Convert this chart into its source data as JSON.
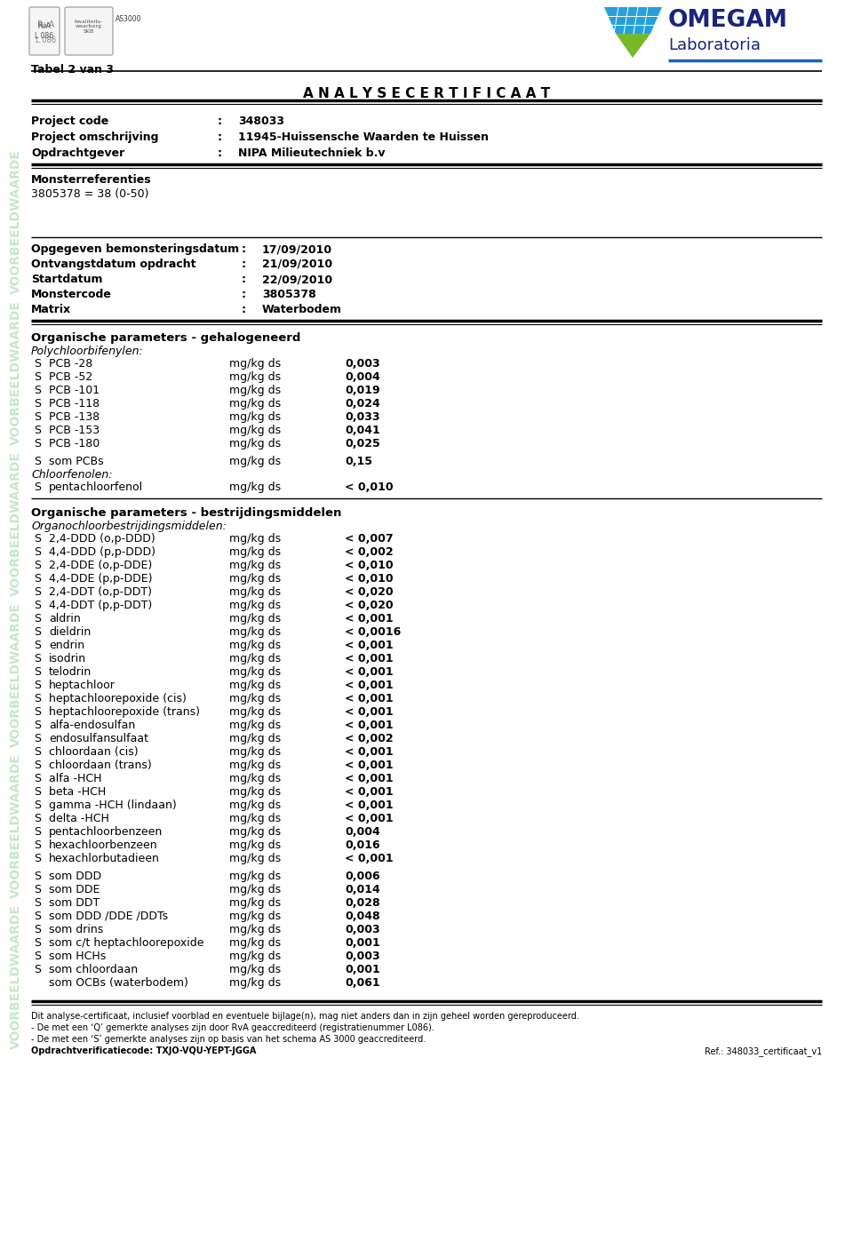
{
  "title": "A N A L Y S E C E R T I F I C A A T",
  "tabel": "Tabel 2 van 3",
  "project_info": [
    [
      "Project code",
      ":",
      "348033"
    ],
    [
      "Project omschrijving",
      ":",
      "11945-Huissensche Waarden te Huissen"
    ],
    [
      "Opdrachtgever",
      ":",
      "NIPA Milieutechniek b.v"
    ]
  ],
  "monster_ref_title": "Monsterreferenties",
  "monster_ref": "3805378 = 38 (0-50)",
  "sample_info": [
    [
      "Opgegeven bemonsteringsdatum",
      ":",
      "17/09/2010"
    ],
    [
      "Ontvangstdatum opdracht",
      ":",
      "21/09/2010"
    ],
    [
      "Startdatum",
      ":",
      "22/09/2010"
    ],
    [
      "Monstercode",
      ":",
      "3805378"
    ],
    [
      "Matrix",
      ":",
      "Waterbodem"
    ]
  ],
  "section1_title": "Organische parameters - gehalogeneerd",
  "section1_subtitle": "Polychloorbifenylen:",
  "section1_rows": [
    [
      "S",
      "PCB -28",
      "mg/kg ds",
      "0,003"
    ],
    [
      "S",
      "PCB -52",
      "mg/kg ds",
      "0,004"
    ],
    [
      "S",
      "PCB -101",
      "mg/kg ds",
      "0,019"
    ],
    [
      "S",
      "PCB -118",
      "mg/kg ds",
      "0,024"
    ],
    [
      "S",
      "PCB -138",
      "mg/kg ds",
      "0,033"
    ],
    [
      "S",
      "PCB -153",
      "mg/kg ds",
      "0,041"
    ],
    [
      "S",
      "PCB -180",
      "mg/kg ds",
      "0,025"
    ]
  ],
  "section1_sum_rows": [
    [
      "S",
      "som PCBs",
      "mg/kg ds",
      "0,15"
    ]
  ],
  "section1_subsection2": "Chloorfenolen:",
  "section1_rows2": [
    [
      "S",
      "pentachloorfenol",
      "mg/kg ds",
      "< 0,010"
    ]
  ],
  "section2_title": "Organische parameters - bestrijdingsmiddelen",
  "section2_subtitle": "Organochloorbestrijdingsmiddelen:",
  "section2_rows": [
    [
      "S",
      "2,4-DDD (o,p-DDD)",
      "mg/kg ds",
      "< 0,007"
    ],
    [
      "S",
      "4,4-DDD (p,p-DDD)",
      "mg/kg ds",
      "< 0,002"
    ],
    [
      "S",
      "2,4-DDE (o,p-DDE)",
      "mg/kg ds",
      "< 0,010"
    ],
    [
      "S",
      "4,4-DDE (p,p-DDE)",
      "mg/kg ds",
      "< 0,010"
    ],
    [
      "S",
      "2,4-DDT (o,p-DDT)",
      "mg/kg ds",
      "< 0,020"
    ],
    [
      "S",
      "4,4-DDT (p,p-DDT)",
      "mg/kg ds",
      "< 0,020"
    ],
    [
      "S",
      "aldrin",
      "mg/kg ds",
      "< 0,001"
    ],
    [
      "S",
      "dieldrin",
      "mg/kg ds",
      "< 0,0016"
    ],
    [
      "S",
      "endrin",
      "mg/kg ds",
      "< 0,001"
    ],
    [
      "S",
      "isodrin",
      "mg/kg ds",
      "< 0,001"
    ],
    [
      "S",
      "telodrin",
      "mg/kg ds",
      "< 0,001"
    ],
    [
      "S",
      "heptachloor",
      "mg/kg ds",
      "< 0,001"
    ],
    [
      "S",
      "heptachloorepoxide (cis)",
      "mg/kg ds",
      "< 0,001"
    ],
    [
      "S",
      "heptachloorepoxide (trans)",
      "mg/kg ds",
      "< 0,001"
    ],
    [
      "S",
      "alfa-endosulfan",
      "mg/kg ds",
      "< 0,001"
    ],
    [
      "S",
      "endosulfansulfaat",
      "mg/kg ds",
      "< 0,002"
    ],
    [
      "S",
      "chloordaan (cis)",
      "mg/kg ds",
      "< 0,001"
    ],
    [
      "S",
      "chloordaan (trans)",
      "mg/kg ds",
      "< 0,001"
    ],
    [
      "S",
      "alfa -HCH",
      "mg/kg ds",
      "< 0,001"
    ],
    [
      "S",
      "beta -HCH",
      "mg/kg ds",
      "< 0,001"
    ],
    [
      "S",
      "gamma -HCH (lindaan)",
      "mg/kg ds",
      "< 0,001"
    ],
    [
      "S",
      "delta -HCH",
      "mg/kg ds",
      "< 0,001"
    ],
    [
      "S",
      "pentachloorbenzeen",
      "mg/kg ds",
      "0,004"
    ],
    [
      "S",
      "hexachloorbenzeen",
      "mg/kg ds",
      "0,016"
    ],
    [
      "S",
      "hexachlorbutadieen",
      "mg/kg ds",
      "< 0,001"
    ]
  ],
  "section2_sum_rows": [
    [
      "S",
      "som DDD",
      "mg/kg ds",
      "0,006"
    ],
    [
      "S",
      "som DDE",
      "mg/kg ds",
      "0,014"
    ],
    [
      "S",
      "som DDT",
      "mg/kg ds",
      "0,028"
    ],
    [
      "S",
      "som DDD /DDE /DDTs",
      "mg/kg ds",
      "0,048"
    ],
    [
      "S",
      "som drins",
      "mg/kg ds",
      "0,003"
    ],
    [
      "S",
      "som c/t heptachloorepoxide",
      "mg/kg ds",
      "0,001"
    ],
    [
      "S",
      "som HCHs",
      "mg/kg ds",
      "0,003"
    ],
    [
      "S",
      "som chloordaan",
      "mg/kg ds",
      "0,001"
    ],
    [
      "",
      "som OCBs (waterbodem)",
      "mg/kg ds",
      "0,061"
    ]
  ],
  "footer_lines": [
    "Dit analyse-certificaat, inclusief voorblad en eventuele bijlage(n), mag niet anders dan in zijn geheel worden gereproduceerd.",
    "- De met een ‘Q’ gemerkte analyses zijn door RvA geaccrediteerd (registratienummer L086).",
    "- De met een ‘S’ gemerkte analyses zijn op basis van het schema AS 3000 geaccrediteerd.",
    "Opdrachtverificatiecode: TXJO-VQU-YEPT-JGGA"
  ],
  "ref": "Ref.: 348033_certificaat_v1",
  "watermark_text": "VOORBEELDWAARDE",
  "bg_color": "#ffffff",
  "omegam_color": "#1a237e",
  "omegam_line_color": "#1565c0"
}
